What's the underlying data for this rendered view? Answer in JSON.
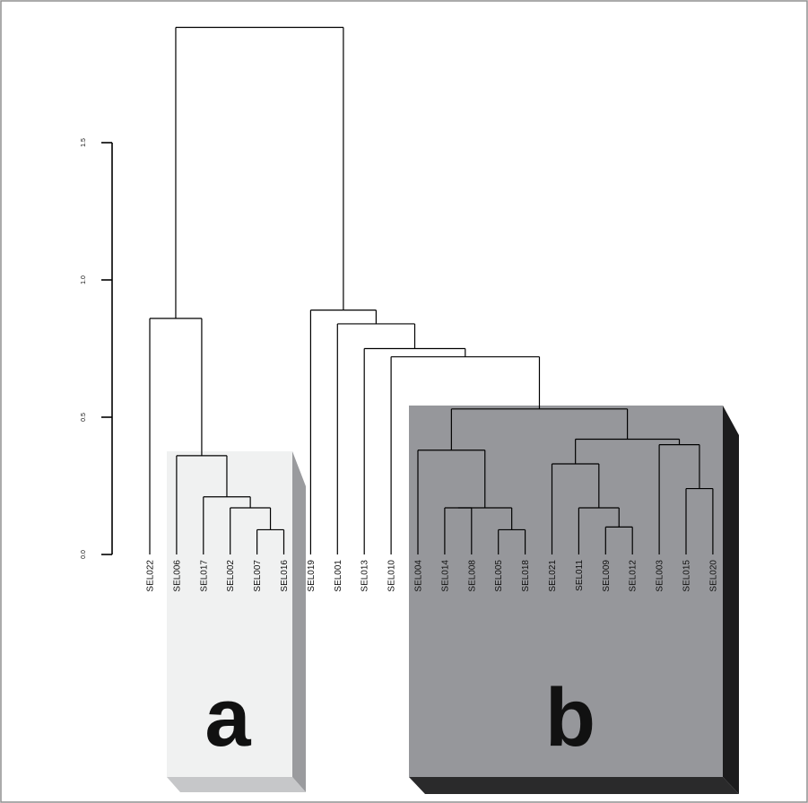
{
  "chart_data": {
    "type": "dendrogram",
    "title": "",
    "xlabel": "",
    "ylabel": "",
    "ylim": [
      0,
      1.9
    ],
    "y_ticks": [
      {
        "value": 0.0,
        "label": "0.0"
      },
      {
        "value": 0.5,
        "label": "0.5"
      },
      {
        "value": 1.0,
        "label": "1.0"
      },
      {
        "value": 1.5,
        "label": "1.5"
      }
    ],
    "leaves": [
      "SEL022",
      "SEL006",
      "SEL017",
      "SEL002",
      "SEL007",
      "SEL016",
      "SEL019",
      "SEL001",
      "SEL013",
      "SEL010",
      "SEL004",
      "SEL014",
      "SEL008",
      "SEL005",
      "SEL018",
      "SEL021",
      "SEL011",
      "SEL009",
      "SEL012",
      "SEL003",
      "SEL015",
      "SEL020"
    ],
    "merges": [
      {
        "a": "SEL007",
        "b": "SEL016",
        "height": 0.09
      },
      {
        "a": "SEL002",
        "b": "m0",
        "height": 0.17
      },
      {
        "a": "SEL017",
        "b": "m1",
        "height": 0.21
      },
      {
        "a": "SEL006",
        "b": "m2",
        "height": 0.36
      },
      {
        "a": "SEL022",
        "b": "m3",
        "height": 0.86
      },
      {
        "a": "SEL005",
        "b": "SEL018",
        "height": 0.09
      },
      {
        "a": "SEL014",
        "b": "SEL008",
        "height": 0.17
      },
      {
        "a": "m6",
        "b": "m5",
        "height": 0.17
      },
      {
        "a": "SEL004",
        "b": "m7",
        "height": 0.38
      },
      {
        "a": "SEL009",
        "b": "SEL012",
        "height": 0.1
      },
      {
        "a": "SEL011",
        "b": "m9",
        "height": 0.17
      },
      {
        "a": "SEL021",
        "b": "m10",
        "height": 0.33
      },
      {
        "a": "SEL015",
        "b": "SEL020",
        "height": 0.24
      },
      {
        "a": "SEL003",
        "b": "m12",
        "height": 0.4
      },
      {
        "a": "m11",
        "b": "m13",
        "height": 0.42
      },
      {
        "a": "m8",
        "b": "m14",
        "height": 0.53
      },
      {
        "a": "SEL010",
        "b": "m15",
        "height": 0.72
      },
      {
        "a": "SEL013",
        "b": "m16",
        "height": 0.75
      },
      {
        "a": "SEL001",
        "b": "m17",
        "height": 0.84
      },
      {
        "a": "SEL019",
        "b": "m18",
        "height": 0.89
      },
      {
        "a": "m4",
        "b": "m19",
        "height": 1.92
      }
    ],
    "groups": [
      {
        "label": "a",
        "color": "#f0f1f1",
        "leaves": [
          "SEL006",
          "SEL017",
          "SEL002",
          "SEL007",
          "SEL016"
        ]
      },
      {
        "label": "b",
        "color": "#96979b",
        "leaves": [
          "SEL004",
          "SEL014",
          "SEL008",
          "SEL005",
          "SEL018",
          "SEL021",
          "SEL011",
          "SEL009",
          "SEL012",
          "SEL003",
          "SEL015",
          "SEL020"
        ]
      }
    ]
  },
  "colors": {
    "group_a_face": "#f0f1f1",
    "group_a_side": "#9a9b9e",
    "group_a_bottom": "#c6c7c9",
    "group_b_face": "#96979b",
    "group_b_side": "#1c1c1d",
    "group_b_bottom": "#2a2a2b",
    "frame": "#8f8f8f",
    "branch": "#000000"
  }
}
